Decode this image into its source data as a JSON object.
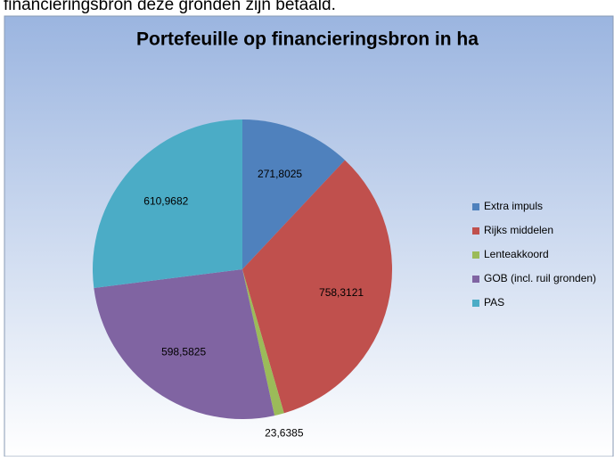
{
  "caption": "financieringsbron deze gronden zijn betaald.",
  "chart_data": {
    "type": "pie",
    "title": "Portefeuille op financieringsbron in ha",
    "categories": [
      "Extra impuls",
      "Rijks middelen",
      "Lenteakkoord",
      "GOB (incl. ruil gronden)",
      "PAS"
    ],
    "values": [
      271.8025,
      758.3121,
      23.6385,
      598.5825,
      610.9682
    ],
    "value_labels": [
      "271,8025",
      "758,3121",
      "23,6385",
      "598,5825",
      "610,9682"
    ],
    "colors": [
      "#4f81bd",
      "#c0504d",
      "#9bbb59",
      "#8064a2",
      "#4bacc6"
    ],
    "legend": "right"
  }
}
